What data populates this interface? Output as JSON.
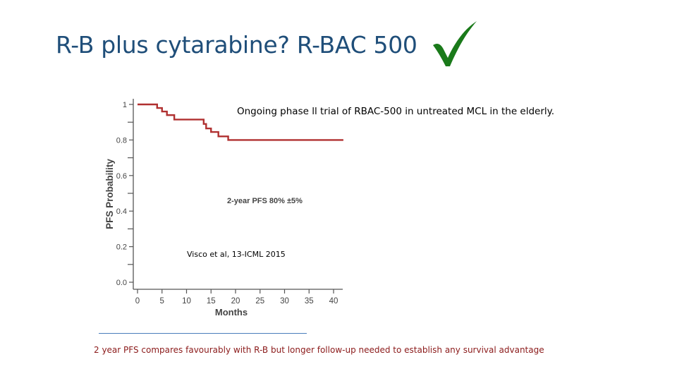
{
  "slide": {
    "title": "R-B plus cytarabine? R-BAC 500",
    "check_icon": "checkmark-icon",
    "check_color": "#1a7a1a",
    "note": "Ongoing  phase ll trial of RBAC-500 in untreated MCL in the elderly.",
    "citation": "Visco et al, 13-ICML 2015",
    "footer": "2 year PFS compares favourably with R-B but  longer follow-up needed to establish any survival advantage",
    "footer_color": "#8b1a1a"
  },
  "chart_data": {
    "type": "line",
    "curve": "step",
    "xlabel": "Months",
    "ylabel": "PFS Probability",
    "xlim": [
      0,
      42
    ],
    "ylim": [
      0,
      1
    ],
    "xticks": [
      "0",
      "5",
      "10",
      "15",
      "20",
      "25",
      "30",
      "35",
      "40"
    ],
    "yticks": [
      "0.0",
      "0.2",
      "0.4",
      "0.6",
      "0.8",
      "1"
    ],
    "series": [
      {
        "color": "#b03030",
        "x": [
          0,
          4,
          5,
          6,
          7.5,
          13.5,
          14,
          15,
          16.5,
          18.5,
          42
        ],
        "y": [
          1.0,
          0.98,
          0.96,
          0.94,
          0.915,
          0.89,
          0.865,
          0.845,
          0.82,
          0.8,
          0.8
        ]
      }
    ],
    "annotation": "2-year PFS 80% ±5%"
  }
}
